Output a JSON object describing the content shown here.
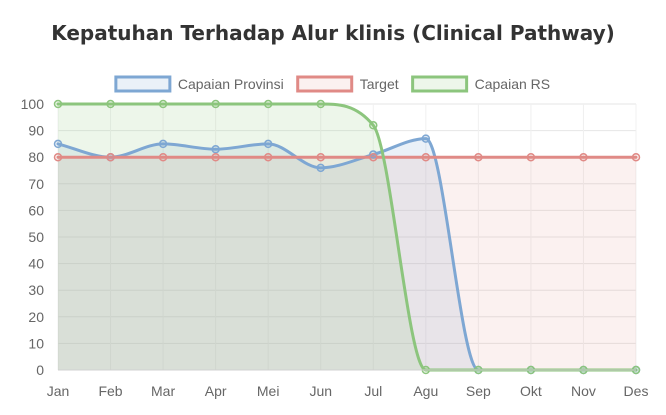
{
  "chart_data": {
    "type": "line",
    "title": "Kepatuhan Terhadap Alur klinis (Clinical Pathway)",
    "xlabel": "",
    "ylabel": "",
    "categories": [
      "Jan",
      "Feb",
      "Mar",
      "Apr",
      "Mei",
      "Jun",
      "Jul",
      "Agu",
      "Sep",
      "Okt",
      "Nov",
      "Des"
    ],
    "ylim": [
      0,
      100
    ],
    "yticks": [
      0,
      10,
      20,
      30,
      40,
      50,
      60,
      70,
      80,
      90,
      100
    ],
    "grid": true,
    "legend_position": "top",
    "series": [
      {
        "name": "Capaian Provinsi",
        "values": [
          85,
          80,
          85,
          83,
          85,
          76,
          81,
          87,
          0,
          0,
          0,
          0
        ],
        "color": "#7ea7d3",
        "fill": "rgba(126,167,211,0.16)"
      },
      {
        "name": "Target",
        "values": [
          80,
          80,
          80,
          80,
          80,
          80,
          80,
          80,
          80,
          80,
          80,
          80
        ],
        "color": "#e08a86",
        "fill": "rgba(224,138,134,0.12)"
      },
      {
        "name": "Capaian RS",
        "values": [
          100,
          100,
          100,
          100,
          100,
          100,
          92,
          0,
          0,
          0,
          0,
          0
        ],
        "color": "#8cc57d",
        "fill": "rgba(140,197,125,0.16)"
      }
    ]
  }
}
